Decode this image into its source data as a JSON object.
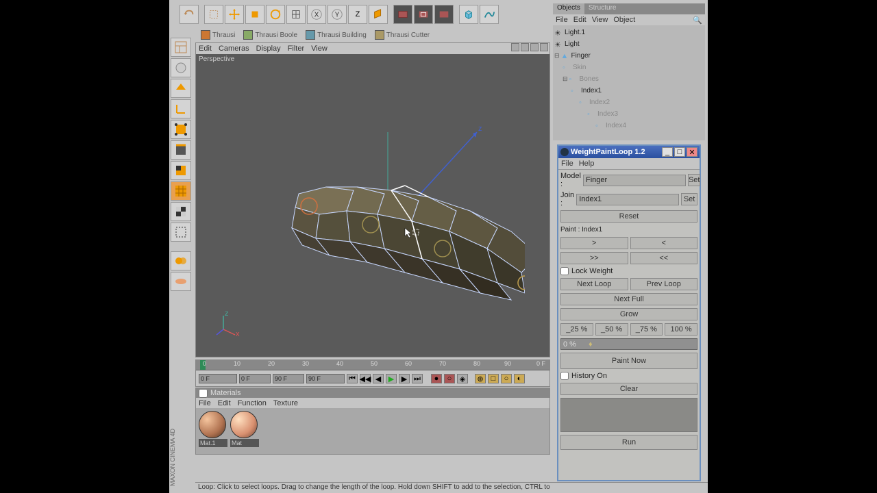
{
  "top_toolbar": {
    "sub_items": [
      {
        "label": "Thrausi"
      },
      {
        "label": "Thrausi Boole"
      },
      {
        "label": "Thrausi Building"
      },
      {
        "label": "Thrausi Cutter"
      }
    ]
  },
  "viewport": {
    "menu": [
      "Edit",
      "Cameras",
      "Display",
      "Filter",
      "View"
    ],
    "label": "Perspective",
    "axes": [
      "x",
      "z"
    ],
    "background": "#5a5a5a",
    "mesh_color": "#7a7055",
    "wire_color": "#c8d8ff",
    "selected_wire": "#ffffff"
  },
  "timeline": {
    "ticks": [
      0,
      10,
      20,
      30,
      40,
      50,
      60,
      70,
      80,
      90
    ],
    "start": "0 F",
    "mid1": "0 F",
    "mid2": "90 F",
    "end": "90 F",
    "current": "0 F"
  },
  "materials": {
    "header": "Materials",
    "menu": [
      "File",
      "Edit",
      "Function",
      "Texture"
    ],
    "items": [
      {
        "name": "Mat.1"
      },
      {
        "name": "Mat"
      }
    ]
  },
  "status": "Loop: Click to select loops. Drag to change the length of the loop. Hold down SHIFT to add to the selection, CTRL to",
  "objects": {
    "tabs": [
      "Objects",
      "Structure"
    ],
    "menu": [
      "File",
      "Edit",
      "View",
      "Object"
    ],
    "tree": [
      {
        "indent": 0,
        "label": "Light.1",
        "type": "light"
      },
      {
        "indent": 0,
        "label": "Light",
        "type": "light"
      },
      {
        "indent": 0,
        "label": "Finger",
        "type": "poly",
        "expand": true
      },
      {
        "indent": 1,
        "label": "Skin",
        "dim": true
      },
      {
        "indent": 1,
        "label": "Bones",
        "dim": true,
        "expand": true
      },
      {
        "indent": 2,
        "label": "Index1",
        "type": "joint"
      },
      {
        "indent": 3,
        "label": "Index2",
        "dim": true
      },
      {
        "indent": 4,
        "label": "Index3",
        "dim": true
      },
      {
        "indent": 5,
        "label": "Index4",
        "dim": true
      }
    ]
  },
  "wpl": {
    "title": "WeightPaintLoop 1.2",
    "menu": [
      "File",
      "Help"
    ],
    "model_label": "Model :",
    "model_value": "Finger",
    "join_label": "Join :",
    "join_value": "Index1",
    "set": "Set",
    "reset": "Reset",
    "paint_label": "Paint : Index1",
    "nav1": [
      ">",
      "<"
    ],
    "nav2": [
      ">>",
      "<<"
    ],
    "lock": "Lock Weight",
    "next_loop": "Next Loop",
    "prev_loop": "Prev Loop",
    "next_full": "Next Full",
    "grow": "Grow",
    "percents": [
      "_25 %",
      "_50 %",
      "_75 %",
      "100 %"
    ],
    "slider": "0 %",
    "paint_now": "Paint Now",
    "history": "History On",
    "clear": "Clear",
    "run": "Run"
  },
  "brand": "MAXON CINEMA 4D"
}
